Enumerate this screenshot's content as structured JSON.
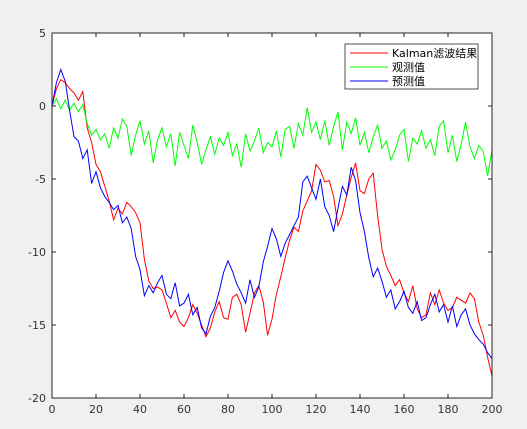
{
  "chart_data": {
    "type": "line",
    "xlim": [
      0,
      200
    ],
    "ylim": [
      -20,
      5
    ],
    "xticks": [
      0,
      20,
      40,
      60,
      80,
      100,
      120,
      140,
      160,
      180,
      200
    ],
    "yticks": [
      -20,
      -15,
      -10,
      -5,
      0,
      5
    ],
    "grid": false,
    "legend_position": "top-right",
    "series": [
      {
        "name": "Kalman滤波结果",
        "color": "#ff0000",
        "x": [
          0,
          2,
          4,
          6,
          8,
          10,
          12,
          14,
          16,
          18,
          20,
          22,
          24,
          26,
          28,
          30,
          32,
          34,
          36,
          38,
          40,
          42,
          44,
          46,
          48,
          50,
          52,
          54,
          56,
          58,
          60,
          62,
          64,
          66,
          68,
          70,
          72,
          74,
          76,
          78,
          80,
          82,
          84,
          86,
          88,
          90,
          92,
          94,
          96,
          98,
          100,
          102,
          104,
          106,
          108,
          110,
          112,
          114,
          116,
          118,
          120,
          122,
          124,
          126,
          128,
          130,
          132,
          134,
          136,
          138,
          140,
          142,
          144,
          146,
          148,
          150,
          152,
          154,
          156,
          158,
          160,
          162,
          164,
          166,
          168,
          170,
          172,
          174,
          176,
          178,
          180,
          182,
          184,
          186,
          188,
          190,
          192,
          194,
          196,
          198,
          200
        ],
        "y": [
          0,
          1.2,
          1.8,
          1.6,
          1.2,
          0.9,
          0.4,
          1.0,
          -1.5,
          -2.5,
          -4.0,
          -4.5,
          -5.5,
          -6.5,
          -7.8,
          -7.0,
          -7.4,
          -6.6,
          -6.9,
          -7.3,
          -8.0,
          -10.5,
          -12.0,
          -12.5,
          -12.4,
          -12.6,
          -13.5,
          -14.5,
          -14.0,
          -14.8,
          -15.1,
          -14.5,
          -13.6,
          -14.2,
          -15.0,
          -15.8,
          -15.2,
          -14.1,
          -13.4,
          -14.5,
          -14.6,
          -13.1,
          -12.9,
          -13.6,
          -15.5,
          -14.2,
          -12.8,
          -12.3,
          -13.4,
          -15.7,
          -14.6,
          -12.9,
          -11.7,
          -10.4,
          -9.2,
          -8.3,
          -8.6,
          -7.2,
          -6.5,
          -5.8,
          -4.0,
          -4.4,
          -5.2,
          -5.1,
          -6.2,
          -8.2,
          -7.4,
          -6.1,
          -4.9,
          -3.9,
          -5.8,
          -6.0,
          -5.0,
          -4.6,
          -7.5,
          -9.8,
          -11.0,
          -11.6,
          -12.3,
          -11.9,
          -12.8,
          -13.4,
          -12.3,
          -13.9,
          -14.5,
          -14.3,
          -12.8,
          -13.6,
          -12.6,
          -13.5,
          -14.0,
          -13.8,
          -13.1,
          -13.3,
          -13.5,
          -12.8,
          -13.2,
          -14.8,
          -15.7,
          -17.2,
          -18.5
        ]
      },
      {
        "name": "观测值",
        "color": "#00ff00",
        "x": [
          0,
          2,
          4,
          6,
          8,
          10,
          12,
          14,
          16,
          18,
          20,
          22,
          24,
          26,
          28,
          30,
          32,
          34,
          36,
          38,
          40,
          42,
          44,
          46,
          48,
          50,
          52,
          54,
          56,
          58,
          60,
          62,
          64,
          66,
          68,
          70,
          72,
          74,
          76,
          78,
          80,
          82,
          84,
          86,
          88,
          90,
          92,
          94,
          96,
          98,
          100,
          102,
          104,
          106,
          108,
          110,
          112,
          114,
          116,
          118,
          120,
          122,
          124,
          126,
          128,
          130,
          132,
          134,
          136,
          138,
          140,
          142,
          144,
          146,
          148,
          150,
          152,
          154,
          156,
          158,
          160,
          162,
          164,
          166,
          168,
          170,
          172,
          174,
          176,
          178,
          180,
          182,
          184,
          186,
          188,
          190,
          192,
          194,
          196,
          198,
          200
        ],
        "y": [
          0,
          0.5,
          -0.2,
          0.4,
          -0.3,
          0.2,
          -0.4,
          0.1,
          -1.2,
          -2.0,
          -1.6,
          -2.3,
          -1.9,
          -2.9,
          -1.5,
          -2.2,
          -0.9,
          -1.4,
          -3.4,
          -2.0,
          -1.0,
          -2.6,
          -1.7,
          -3.9,
          -2.3,
          -1.5,
          -2.8,
          -1.9,
          -4.1,
          -1.8,
          -2.7,
          -3.6,
          -1.3,
          -2.5,
          -4.0,
          -3.0,
          -2.1,
          -3.3,
          -2.2,
          -2.7,
          -1.8,
          -3.4,
          -2.6,
          -4.2,
          -1.9,
          -3.1,
          -2.4,
          -1.5,
          -3.2,
          -2.5,
          -2.8,
          -1.7,
          -3.5,
          -1.6,
          -1.4,
          -2.9,
          -1.2,
          -2.0,
          -0.1,
          -1.8,
          -1.1,
          -2.3,
          -1.0,
          -2.7,
          -1.4,
          -0.4,
          -3.0,
          -1.1,
          -1.9,
          -0.8,
          -2.7,
          -1.8,
          -3.2,
          -2.1,
          -1.3,
          -2.9,
          -2.4,
          -3.7,
          -3.0,
          -2.0,
          -1.6,
          -3.8,
          -2.2,
          -2.6,
          -1.7,
          -2.9,
          -2.3,
          -3.4,
          -1.4,
          -1.0,
          -3.2,
          -2.0,
          -3.8,
          -2.6,
          -1.1,
          -2.8,
          -3.6,
          -2.7,
          -3.1,
          -4.8,
          -3.0
        ]
      },
      {
        "name": "预测值",
        "color": "#0000ff",
        "x": [
          0,
          2,
          4,
          6,
          8,
          10,
          12,
          14,
          16,
          18,
          20,
          22,
          24,
          26,
          28,
          30,
          32,
          34,
          36,
          38,
          40,
          42,
          44,
          46,
          48,
          50,
          52,
          54,
          56,
          58,
          60,
          62,
          64,
          66,
          68,
          70,
          72,
          74,
          76,
          78,
          80,
          82,
          84,
          86,
          88,
          90,
          92,
          94,
          96,
          98,
          100,
          102,
          104,
          106,
          108,
          110,
          112,
          114,
          116,
          118,
          120,
          122,
          124,
          126,
          128,
          130,
          132,
          134,
          136,
          138,
          140,
          142,
          144,
          146,
          148,
          150,
          152,
          154,
          156,
          158,
          160,
          162,
          164,
          166,
          168,
          170,
          172,
          174,
          176,
          178,
          180,
          182,
          184,
          186,
          188,
          190,
          192,
          194,
          196,
          198,
          200
        ],
        "y": [
          0,
          1.6,
          2.5,
          1.7,
          -0.3,
          -2.1,
          -2.4,
          -3.6,
          -3.0,
          -5.3,
          -4.5,
          -5.6,
          -6.2,
          -6.6,
          -7.1,
          -6.8,
          -8.0,
          -7.6,
          -8.4,
          -10.3,
          -11.2,
          -13.0,
          -12.3,
          -12.8,
          -12.1,
          -11.6,
          -12.9,
          -13.2,
          -12.1,
          -13.7,
          -13.5,
          -12.9,
          -14.3,
          -13.8,
          -15.2,
          -15.6,
          -14.4,
          -13.8,
          -12.7,
          -11.4,
          -10.6,
          -11.3,
          -12.2,
          -12.8,
          -13.5,
          -11.9,
          -13.1,
          -12.4,
          -10.7,
          -9.6,
          -8.4,
          -9.1,
          -10.3,
          -9.4,
          -8.8,
          -8.2,
          -7.6,
          -5.2,
          -4.8,
          -5.6,
          -6.4,
          -5.0,
          -6.9,
          -7.5,
          -8.6,
          -7.0,
          -5.5,
          -6.1,
          -4.2,
          -5.1,
          -7.3,
          -8.6,
          -10.4,
          -11.7,
          -11.1,
          -12.0,
          -13.1,
          -12.6,
          -13.9,
          -13.4,
          -12.7,
          -13.8,
          -14.2,
          -13.4,
          -14.7,
          -14.5,
          -13.6,
          -12.9,
          -14.1,
          -13.6,
          -14.8,
          -13.7,
          -15.1,
          -14.3,
          -13.9,
          -15.0,
          -15.6,
          -16.0,
          -16.3,
          -16.9,
          -17.3
        ]
      }
    ]
  }
}
